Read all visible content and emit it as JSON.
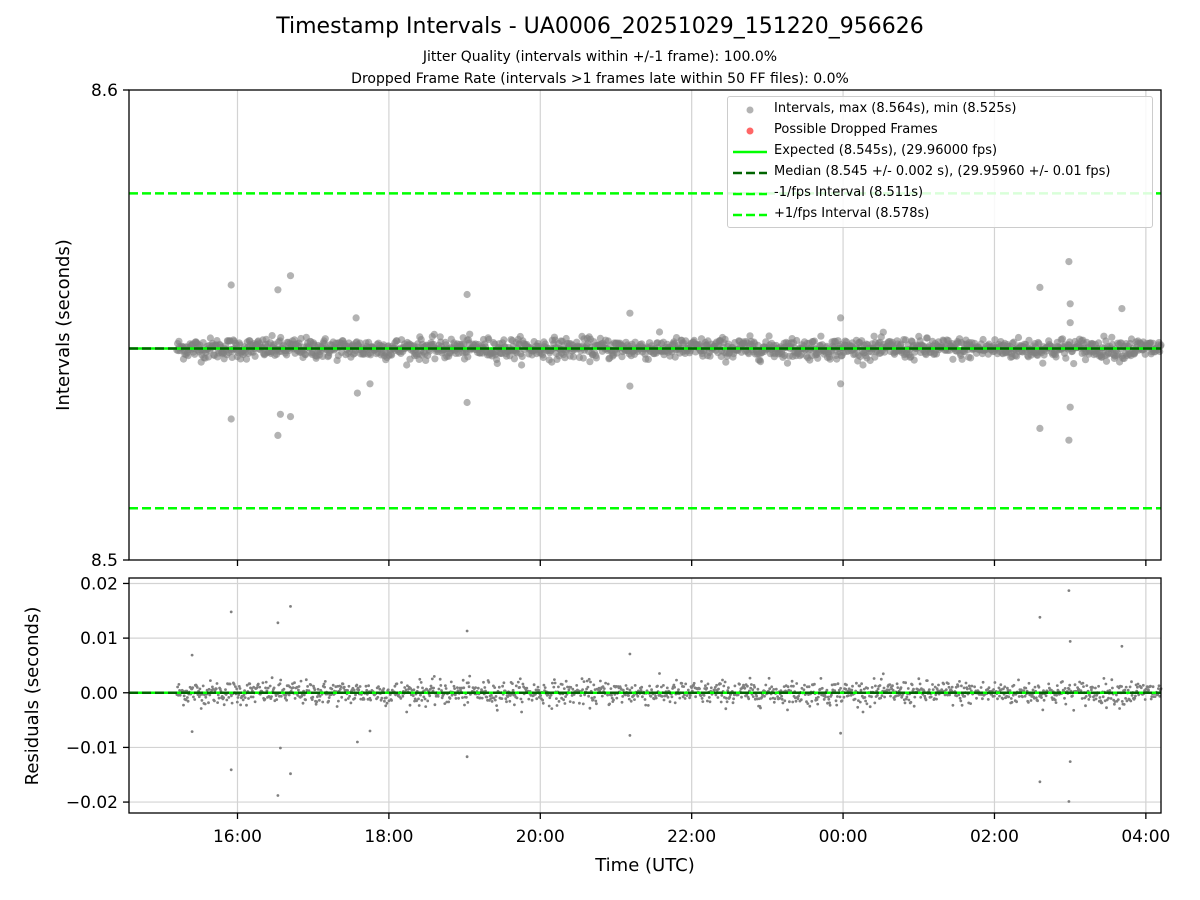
{
  "title": "Timestamp Intervals - UA0006_20251029_151220_956626",
  "subtitle_lines": [
    "Jitter Quality (intervals within +/-1 frame): 100.0%",
    "Dropped Frame Rate (intervals >1 frames late within 50 FF files): 0.0%"
  ],
  "colors": {
    "intervals": "#808080",
    "dropped": "#ff0000",
    "expected": "#00ff00",
    "median": "#006400",
    "fps_bounds": "#00ff00",
    "grid": "#d3d3d3"
  },
  "chart_data": [
    {
      "type": "scatter",
      "panel": "top",
      "ylabel": "Intervals (seconds)",
      "ylim": [
        8.5,
        8.6
      ],
      "yticks": [
        8.5,
        8.6
      ],
      "xlim": [
        "2025-10-29 14:34",
        "2025-10-30 04:12"
      ],
      "grid": "x",
      "legend_position": "upper-right",
      "x_start": "2025-10-29 15:12",
      "x_end": "2025-10-30 04:12",
      "series": [
        {
          "name": "Intervals, max (8.564s), min (8.525s)",
          "marker": "circle",
          "center": 8.545,
          "spread": 0.002,
          "outliers": [
            {
              "x": "15:55",
              "y": 8.5585
            },
            {
              "x": "16:32",
              "y": 8.5575
            },
            {
              "x": "16:42",
              "y": 8.5605
            },
            {
              "x": "15:55",
              "y": 8.53
            },
            {
              "x": "16:32",
              "y": 8.5265
            },
            {
              "x": "16:34",
              "y": 8.531
            },
            {
              "x": "16:42",
              "y": 8.5305
            },
            {
              "x": "19:02",
              "y": 8.5565
            },
            {
              "x": "19:02",
              "y": 8.5335
            },
            {
              "x": "17:34",
              "y": 8.5515
            },
            {
              "x": "17:35",
              "y": 8.5355
            },
            {
              "x": "17:45",
              "y": 8.5375
            },
            {
              "x": "02:36",
              "y": 8.558
            },
            {
              "x": "02:36",
              "y": 8.528
            },
            {
              "x": "02:59",
              "y": 8.5635
            },
            {
              "x": "02:59",
              "y": 8.5255
            },
            {
              "x": "03:00",
              "y": 8.5545
            },
            {
              "x": "03:00",
              "y": 8.5325
            },
            {
              "x": "03:00",
              "y": 8.5505
            },
            {
              "x": "03:41",
              "y": 8.5535
            },
            {
              "x": "21:11",
              "y": 8.5525
            },
            {
              "x": "21:11",
              "y": 8.537
            },
            {
              "x": "23:58",
              "y": 8.5375
            },
            {
              "x": "23:58",
              "y": 8.5515
            }
          ]
        },
        {
          "name": "Possible Dropped Frames",
          "marker": "circle",
          "values": []
        }
      ],
      "lines": [
        {
          "name": "Expected (8.545s), (29.96000 fps)",
          "y": 8.545,
          "style": "solid"
        },
        {
          "name": "Median (8.545 +/- 0.002 s), (29.95960 +/- 0.01 fps)",
          "y": 8.545,
          "style": "dashed"
        },
        {
          "name": "-1/fps Interval (8.511s)",
          "y": 8.511,
          "style": "dashed"
        },
        {
          "name": "+1/fps Interval (8.578s)",
          "y": 8.578,
          "style": "dashed"
        }
      ]
    },
    {
      "type": "scatter",
      "panel": "bottom",
      "xlabel": "Time (UTC)",
      "ylabel": "Residuals (seconds)",
      "ylim": [
        -0.022,
        0.021
      ],
      "yticks": [
        -0.02,
        -0.01,
        0.0,
        0.01,
        0.02
      ],
      "ytick_labels": [
        "−0.02",
        "−0.01",
        "0.00",
        "0.01",
        "0.02"
      ],
      "xticks": [
        "16:00",
        "18:00",
        "20:00",
        "22:00",
        "00:00",
        "02:00",
        "04:00"
      ],
      "grid": "both",
      "zero_line": 0.0,
      "spread": 0.002,
      "outliers": [
        {
          "x": "15:55",
          "y": 0.0148
        },
        {
          "x": "16:32",
          "y": 0.0128
        },
        {
          "x": "16:42",
          "y": 0.0158
        },
        {
          "x": "15:55",
          "y": -0.0141
        },
        {
          "x": "16:32",
          "y": -0.0188
        },
        {
          "x": "16:34",
          "y": -0.0101
        },
        {
          "x": "16:42",
          "y": -0.0148
        },
        {
          "x": "19:02",
          "y": 0.0113
        },
        {
          "x": "19:02",
          "y": -0.0117
        },
        {
          "x": "17:35",
          "y": -0.009
        },
        {
          "x": "17:45",
          "y": -0.007
        },
        {
          "x": "02:36",
          "y": 0.0138
        },
        {
          "x": "02:36",
          "y": -0.0163
        },
        {
          "x": "02:59",
          "y": 0.0187
        },
        {
          "x": "02:59",
          "y": -0.0199
        },
        {
          "x": "03:00",
          "y": 0.0094
        },
        {
          "x": "03:00",
          "y": -0.0126
        },
        {
          "x": "03:41",
          "y": 0.0085
        },
        {
          "x": "21:11",
          "y": 0.0071
        },
        {
          "x": "21:11",
          "y": -0.0078
        },
        {
          "x": "23:58",
          "y": -0.0074
        },
        {
          "x": "15:24",
          "y": 0.0069
        },
        {
          "x": "15:24",
          "y": -0.0071
        }
      ]
    }
  ]
}
